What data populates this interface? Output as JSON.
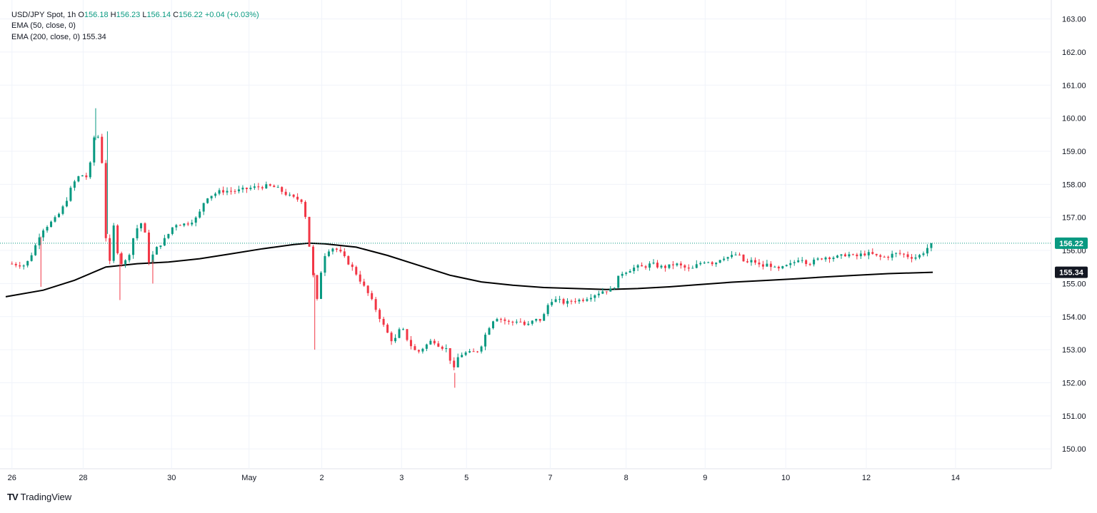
{
  "header": {
    "symbol": "USD/JPY Spot, 1h",
    "o_label": "O",
    "open": "156.18",
    "h_label": "H",
    "high": "156.23",
    "l_label": "L",
    "low": "156.14",
    "c_label": "C",
    "close": "156.22",
    "change": "+0.04 (+0.03%)",
    "ema50_label": "EMA (50, close, 0)",
    "ema200_label": "EMA (200, close, 0)",
    "ema200_value": "155.34"
  },
  "branding": {
    "logo_text": "TV",
    "name": "TradingView"
  },
  "colors": {
    "up": "#089981",
    "down": "#f23645",
    "ema": "#000000",
    "grid": "#f0f3fa",
    "price_line": "#089981"
  },
  "price_badge": "156.22",
  "ema_badge": "155.34",
  "chart_data": {
    "type": "candlestick",
    "title": "USD/JPY Spot, 1h",
    "ylim": [
      149.4,
      163.4
    ],
    "yticks": [
      "150.00",
      "151.00",
      "152.00",
      "153.00",
      "154.00",
      "155.00",
      "156.00",
      "157.00",
      "158.00",
      "159.00",
      "160.00",
      "161.00",
      "162.00",
      "163.00"
    ],
    "xticks": [
      {
        "label": "26",
        "t": 0
      },
      {
        "label": "28",
        "t": 9.1
      },
      {
        "label": "30",
        "t": 20.4
      },
      {
        "label": "May",
        "t": 30.3
      },
      {
        "label": "2",
        "t": 39.6
      },
      {
        "label": "3",
        "t": 49.8
      },
      {
        "label": "5",
        "t": 58.1
      },
      {
        "label": "7",
        "t": 68.8
      },
      {
        "label": "8",
        "t": 78.5
      },
      {
        "label": "9",
        "t": 88.6
      },
      {
        "label": "10",
        "t": 98.9
      },
      {
        "label": "12",
        "t": 109.2
      },
      {
        "label": "14",
        "t": 120.6
      }
    ],
    "t_range": [
      -0.8,
      127.0
    ],
    "last_price": 156.22,
    "candle_anchors": [
      [
        0,
        155.6
      ],
      [
        2,
        155.55
      ],
      [
        3,
        156.0
      ],
      [
        4,
        156.6
      ],
      [
        5,
        156.8
      ],
      [
        6,
        157.0
      ],
      [
        7,
        157.4
      ],
      [
        8,
        158.0
      ],
      [
        9,
        158.3
      ],
      [
        10,
        158.2
      ],
      [
        10.8,
        159.5
      ],
      [
        11.6,
        159.4
      ],
      [
        12.2,
        156.5
      ],
      [
        12.7,
        155.5
      ],
      [
        13.2,
        156.8
      ],
      [
        14,
        155.6
      ],
      [
        15,
        155.7
      ],
      [
        16,
        156.6
      ],
      [
        17,
        156.9
      ],
      [
        17.8,
        155.6
      ],
      [
        18.5,
        156.0
      ],
      [
        20,
        156.4
      ],
      [
        21,
        156.8
      ],
      [
        22.5,
        156.8
      ],
      [
        24,
        157.0
      ],
      [
        25,
        157.6
      ],
      [
        27,
        157.8
      ],
      [
        29,
        157.8
      ],
      [
        31,
        157.9
      ],
      [
        33,
        157.95
      ],
      [
        34,
        157.9
      ],
      [
        36,
        157.6
      ],
      [
        37.5,
        157.5
      ],
      [
        38.6,
        155.5
      ],
      [
        39.2,
        154.4
      ],
      [
        40,
        155.8
      ],
      [
        41,
        156.1
      ],
      [
        42,
        156.0
      ],
      [
        43,
        155.7
      ],
      [
        44,
        155.4
      ],
      [
        45,
        155.0
      ],
      [
        46,
        154.6
      ],
      [
        47,
        154.1
      ],
      [
        48,
        153.6
      ],
      [
        49,
        153.2
      ],
      [
        50,
        153.7
      ],
      [
        51,
        153.2
      ],
      [
        52,
        152.9
      ],
      [
        53,
        153.1
      ],
      [
        54,
        153.3
      ],
      [
        55,
        153.1
      ],
      [
        56,
        153.0
      ],
      [
        56.6,
        152.3
      ],
      [
        57.3,
        152.8
      ],
      [
        58,
        152.9
      ],
      [
        59,
        152.9
      ],
      [
        60,
        153.0
      ],
      [
        61,
        153.6
      ],
      [
        62,
        154.0
      ],
      [
        63,
        153.9
      ],
      [
        64,
        153.8
      ],
      [
        65,
        153.9
      ],
      [
        66,
        153.7
      ],
      [
        67,
        153.9
      ],
      [
        68,
        153.9
      ],
      [
        69,
        154.5
      ],
      [
        70,
        154.5
      ],
      [
        71,
        154.4
      ],
      [
        72,
        154.5
      ],
      [
        73,
        154.5
      ],
      [
        74,
        154.6
      ],
      [
        75,
        154.7
      ],
      [
        76,
        154.8
      ],
      [
        77,
        154.8
      ],
      [
        78,
        155.3
      ],
      [
        79,
        155.4
      ],
      [
        80,
        155.5
      ],
      [
        81,
        155.5
      ],
      [
        82,
        155.6
      ],
      [
        83,
        155.5
      ],
      [
        84,
        155.5
      ],
      [
        85,
        155.6
      ],
      [
        86,
        155.5
      ],
      [
        87,
        155.4
      ],
      [
        88,
        155.6
      ],
      [
        89,
        155.7
      ],
      [
        90,
        155.6
      ],
      [
        91,
        155.8
      ],
      [
        92,
        155.8
      ],
      [
        93,
        155.9
      ],
      [
        94,
        155.6
      ],
      [
        95,
        155.7
      ],
      [
        96,
        155.5
      ],
      [
        97,
        155.6
      ],
      [
        98,
        155.4
      ],
      [
        99,
        155.5
      ],
      [
        100,
        155.6
      ],
      [
        101,
        155.8
      ],
      [
        102,
        155.6
      ],
      [
        103,
        155.7
      ],
      [
        104,
        155.8
      ],
      [
        105,
        155.8
      ],
      [
        106,
        155.8
      ],
      [
        107,
        155.9
      ],
      [
        108,
        155.8
      ],
      [
        109,
        155.9
      ],
      [
        110,
        155.9
      ],
      [
        111,
        155.8
      ],
      [
        112,
        155.8
      ],
      [
        113,
        155.9
      ],
      [
        114,
        155.9
      ],
      [
        115,
        155.8
      ],
      [
        116,
        155.8
      ],
      [
        117,
        156.0
      ],
      [
        117.7,
        156.22
      ]
    ],
    "spikes": [
      {
        "t": 10.7,
        "high": 160.3
      },
      {
        "t": 12.2,
        "high": 159.6
      },
      {
        "t": 13.8,
        "low": 154.5
      },
      {
        "t": 18.0,
        "low": 155.0
      },
      {
        "t": 38.7,
        "low": 153.0
      },
      {
        "t": 3.7,
        "low": 154.9
      },
      {
        "t": 56.6,
        "low": 151.85
      }
    ],
    "series": [
      {
        "name": "EMA (200, close, 0)",
        "type": "line",
        "points": [
          [
            -0.8,
            154.6
          ],
          [
            4,
            154.8
          ],
          [
            8,
            155.1
          ],
          [
            12,
            155.5
          ],
          [
            16,
            155.6
          ],
          [
            20,
            155.65
          ],
          [
            24,
            155.75
          ],
          [
            28,
            155.9
          ],
          [
            32,
            156.05
          ],
          [
            36,
            156.18
          ],
          [
            38,
            156.22
          ],
          [
            40,
            156.2
          ],
          [
            44,
            156.1
          ],
          [
            48,
            155.85
          ],
          [
            52,
            155.55
          ],
          [
            56,
            155.25
          ],
          [
            60,
            155.05
          ],
          [
            64,
            154.95
          ],
          [
            68,
            154.88
          ],
          [
            72,
            154.85
          ],
          [
            76,
            154.82
          ],
          [
            80,
            154.85
          ],
          [
            84,
            154.9
          ],
          [
            88,
            154.97
          ],
          [
            92,
            155.04
          ],
          [
            96,
            155.09
          ],
          [
            100,
            155.14
          ],
          [
            104,
            155.2
          ],
          [
            108,
            155.25
          ],
          [
            112,
            155.3
          ],
          [
            117.7,
            155.34
          ]
        ]
      }
    ]
  }
}
